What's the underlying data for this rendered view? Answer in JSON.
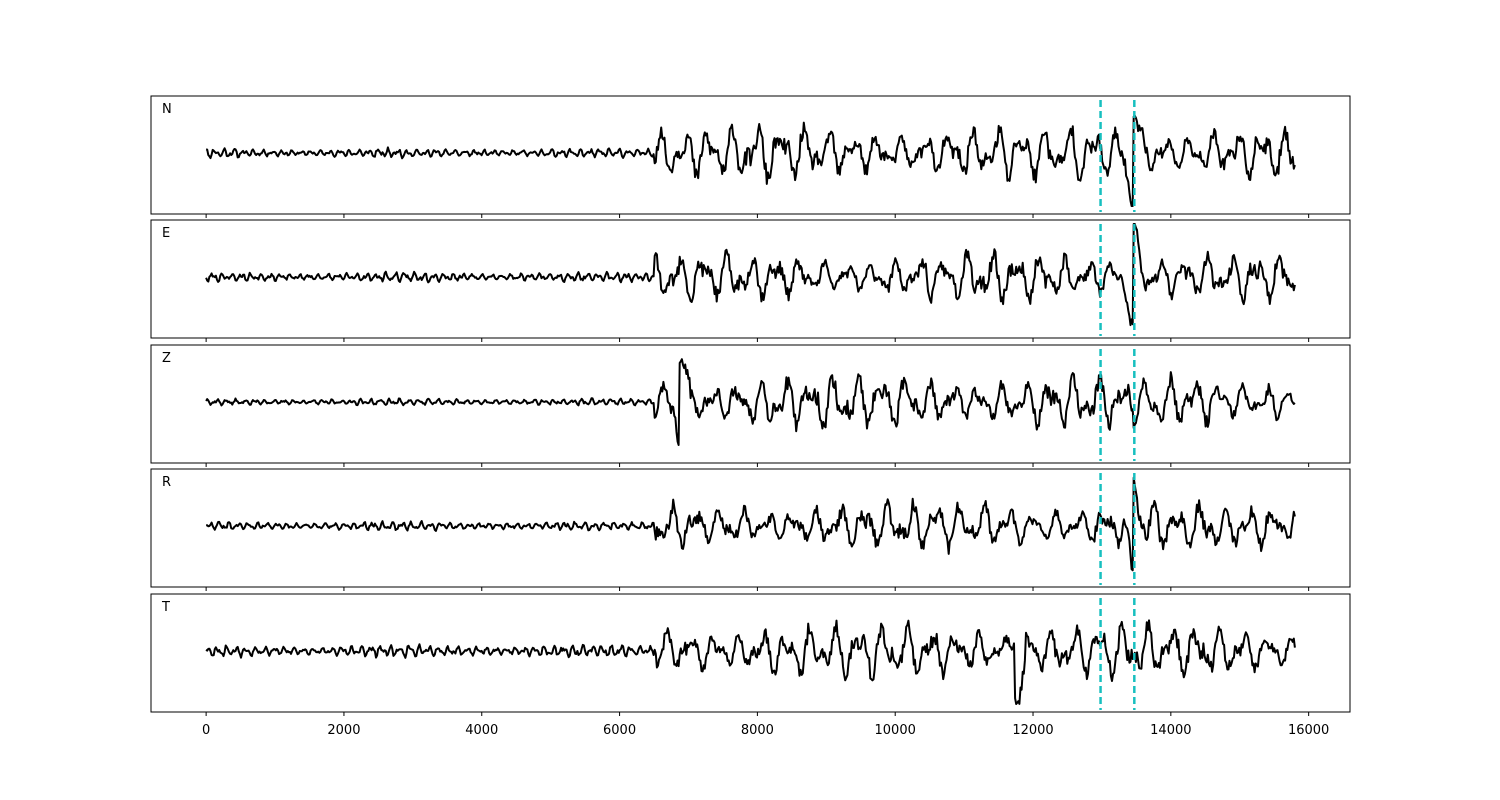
{
  "chart_data": {
    "type": "line",
    "xlim": [
      -800,
      16600
    ],
    "x_ticks": [
      0,
      2000,
      4000,
      6000,
      8000,
      10000,
      12000,
      14000,
      16000
    ],
    "x_tick_labels": [
      "0",
      "2000",
      "4000",
      "6000",
      "8000",
      "10000",
      "12000",
      "14000",
      "16000"
    ],
    "sample_range": [
      0,
      15800
    ],
    "arrival_picks": [
      12980,
      13470
    ],
    "pick_color": "#17bfbf",
    "trace_color": "#000000",
    "grid": false,
    "panels": [
      {
        "label": "N",
        "pre_arrival_amplitude": 0.12,
        "coda_amplitude": 0.72,
        "onset": 6500,
        "spike_at": 13450,
        "seed": 11
      },
      {
        "label": "E",
        "pre_arrival_amplitude": 0.13,
        "coda_amplitude": 0.62,
        "onset": 6500,
        "spike_at": 13450,
        "seed": 23
      },
      {
        "label": "Z",
        "pre_arrival_amplitude": 0.09,
        "coda_amplitude": 0.7,
        "onset": 6500,
        "spike_at": 6900,
        "seed": 37
      },
      {
        "label": "R",
        "pre_arrival_amplitude": 0.12,
        "coda_amplitude": 0.62,
        "onset": 6500,
        "spike_at": 13450,
        "seed": 41
      },
      {
        "label": "T",
        "pre_arrival_amplitude": 0.16,
        "coda_amplitude": 0.7,
        "onset": 6500,
        "spike_at": 11800,
        "seed": 53
      }
    ]
  }
}
